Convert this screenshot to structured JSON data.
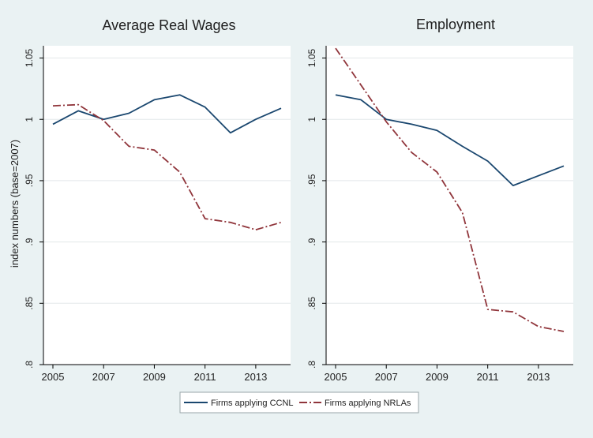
{
  "figure": {
    "ylabel": "index numbers (base=2007)"
  },
  "legend": {
    "entries": [
      "Firms applying CCNL",
      "Firms applying NRLAs"
    ],
    "placement": "bottom-center"
  },
  "colors": {
    "background": "#eaf2f3",
    "plot_area": "#ffffff",
    "ccnl": "#1a476f",
    "nrlas": "#90353b",
    "text": "#1f1f1f"
  },
  "chart_data": [
    {
      "type": "line",
      "title": "Average Real Wages",
      "xlabel": "",
      "ylabel": "index numbers (base=2007)",
      "x": [
        2005,
        2006,
        2007,
        2008,
        2009,
        2010,
        2011,
        2012,
        2013,
        2014
      ],
      "xticks": [
        "2005",
        "2007",
        "2009",
        "2011",
        "2013"
      ],
      "yticks": [
        ".8",
        ".85",
        ".9",
        ".95",
        "1",
        "1.05"
      ],
      "ylim": [
        0.8,
        1.06
      ],
      "xlim": [
        2005,
        2014
      ],
      "grid": true,
      "series": [
        {
          "name": "Firms applying CCNL",
          "style": "solid",
          "values": [
            0.996,
            1.007,
            1.0,
            1.005,
            1.016,
            1.02,
            1.01,
            0.989,
            1.0,
            1.009
          ]
        },
        {
          "name": "Firms applying NRLAs",
          "style": "dash-dot",
          "values": [
            1.011,
            1.012,
            0.999,
            0.978,
            0.975,
            0.957,
            0.919,
            0.916,
            0.91,
            0.916
          ]
        }
      ]
    },
    {
      "type": "line",
      "title": "Employment",
      "xlabel": "",
      "ylabel": "",
      "x": [
        2005,
        2006,
        2007,
        2008,
        2009,
        2010,
        2011,
        2012,
        2013,
        2014
      ],
      "xticks": [
        "2005",
        "2007",
        "2009",
        "2011",
        "2013"
      ],
      "yticks": [
        ".8",
        ".85",
        ".9",
        ".95",
        "1",
        "1.05"
      ],
      "ylim": [
        0.8,
        1.06
      ],
      "xlim": [
        2005,
        2014
      ],
      "grid": true,
      "series": [
        {
          "name": "Firms applying CCNL",
          "style": "solid",
          "values": [
            1.02,
            1.016,
            1.0,
            0.996,
            0.991,
            0.978,
            0.966,
            0.946,
            0.954,
            0.962
          ]
        },
        {
          "name": "Firms applying NRLAs",
          "style": "dash-dot",
          "values": [
            1.058,
            1.028,
            0.998,
            0.973,
            0.957,
            0.924,
            0.845,
            0.843,
            0.831,
            0.827
          ]
        }
      ]
    }
  ]
}
